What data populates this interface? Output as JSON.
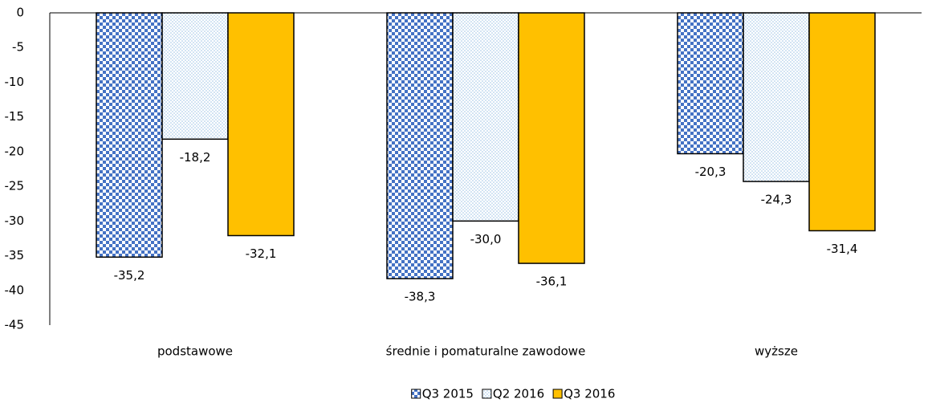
{
  "chart_data": {
    "type": "bar",
    "categories": [
      "podstawowe",
      "średnie i pomaturalne zawodowe",
      "wyższe"
    ],
    "series": [
      {
        "name": "Q3 2015",
        "color": "#4472c4",
        "pattern": "checker",
        "values": [
          -35.2,
          -38.3,
          -20.3
        ],
        "value_labels": [
          "-35,2",
          "-38,3",
          "-20,3"
        ]
      },
      {
        "name": "Q2 2016",
        "color": "#9dc3e6",
        "pattern": "dots",
        "values": [
          -18.2,
          -30.0,
          -24.3
        ],
        "value_labels": [
          "-18,2",
          "-30,0",
          "-24,3"
        ]
      },
      {
        "name": "Q3 2016",
        "color": "#ffc000",
        "pattern": "solid",
        "values": [
          -32.1,
          -36.1,
          -31.4
        ],
        "value_labels": [
          "-32,1",
          "-36,1",
          "-31,4"
        ]
      }
    ],
    "ylim": [
      -45,
      0
    ],
    "yticks": [
      0,
      -5,
      -10,
      -15,
      -20,
      -25,
      -30,
      -35,
      -40,
      -45
    ],
    "grid": false,
    "legend": "bottom"
  }
}
